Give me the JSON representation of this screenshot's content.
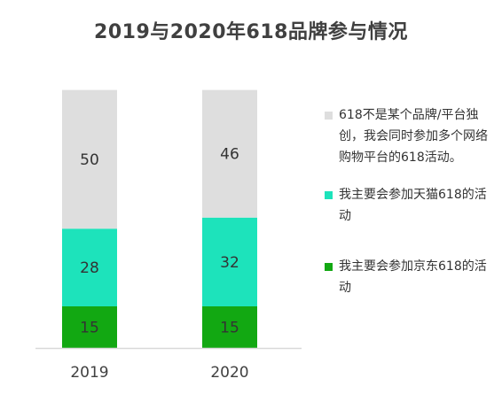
{
  "chart_data": {
    "type": "bar",
    "stacked": true,
    "title": "2019与2020年618品牌参与情况",
    "xlabel": "",
    "ylabel": "",
    "categories": [
      "2019",
      "2020"
    ],
    "series": [
      {
        "name": "我主要会参加京东618的活动",
        "values": [
          15,
          15
        ],
        "color": "#12a812"
      },
      {
        "name": "我主要会参加天猫618的活动",
        "values": [
          28,
          32
        ],
        "color": "#1de3bb"
      },
      {
        "name": "618不是某个品牌/平台独创，我会同时参加多个网络购物平台的618活动。",
        "values": [
          50,
          46
        ],
        "color": "#dedede"
      }
    ],
    "legend_position": "right",
    "grid": false,
    "axis_line_color": "#d9d9d9"
  }
}
